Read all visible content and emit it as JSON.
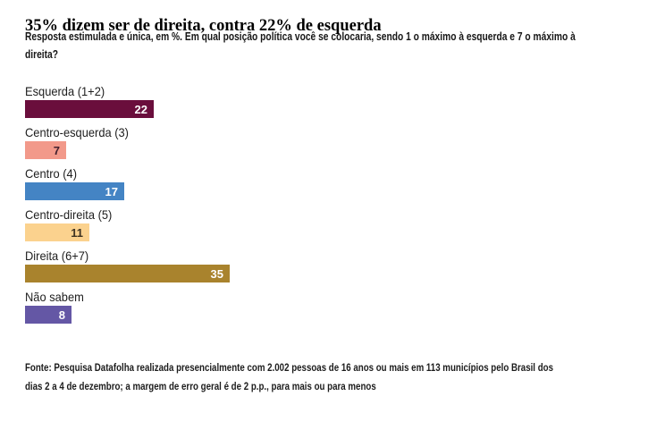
{
  "header": {
    "subtitle_lines": [
      "Resposta estimulada e única, em %. Em qual posição política você se colocaria, sendo 1 o máximo à esquerda e 7 o máximo à",
      "direita?"
    ]
  },
  "chart_data": {
    "type": "bar",
    "orientation": "horizontal",
    "title": "35% dizem ser de direita, contra 22% de esquerda",
    "subtitle": "Resposta estimulada e única, em %. Em qual posição política você se colocaria, sendo 1 o máximo à esquerda e 7 o máximo à direita?",
    "unit": "%",
    "categories": [
      "Esquerda (1+2)",
      "Centro-esquerda (3)",
      "Centro (4)",
      "Centro-direita (5)",
      "Direita (6+7)",
      "Não sabem"
    ],
    "values": [
      22,
      7,
      17,
      11,
      35,
      8
    ],
    "bar_colors": [
      "#6a0e3c",
      "#f2998a",
      "#4484c4",
      "#fbd28e",
      "#a9832d",
      "#6457a5"
    ],
    "value_label_colors": [
      "#ffffff",
      "#42202e",
      "#ffffff",
      "#3e3322",
      "#ffffff",
      "#ffffff"
    ],
    "xlim": [
      0,
      35
    ],
    "grid": false,
    "legend": "none",
    "value_labels": "inside-end",
    "source": "Fonte: Pesquisa Datafolha realizada presencialmente com 2.002 pessoas de 16 anos ou mais em 113 municípios pelo Brasil dos dias 2 a 4 de dezembro; a margem de erro geral é de 2 p.p., para mais ou para menos"
  },
  "footer": {
    "lines": [
      "Fonte: Pesquisa Datafolha realizada presencialmente com 2.002 pessoas de 16 anos ou mais em 113 municípios pelo Brasil dos",
      "dias 2 a 4 de dezembro; a margem de erro geral é de 2 p.p., para mais ou para menos"
    ]
  }
}
